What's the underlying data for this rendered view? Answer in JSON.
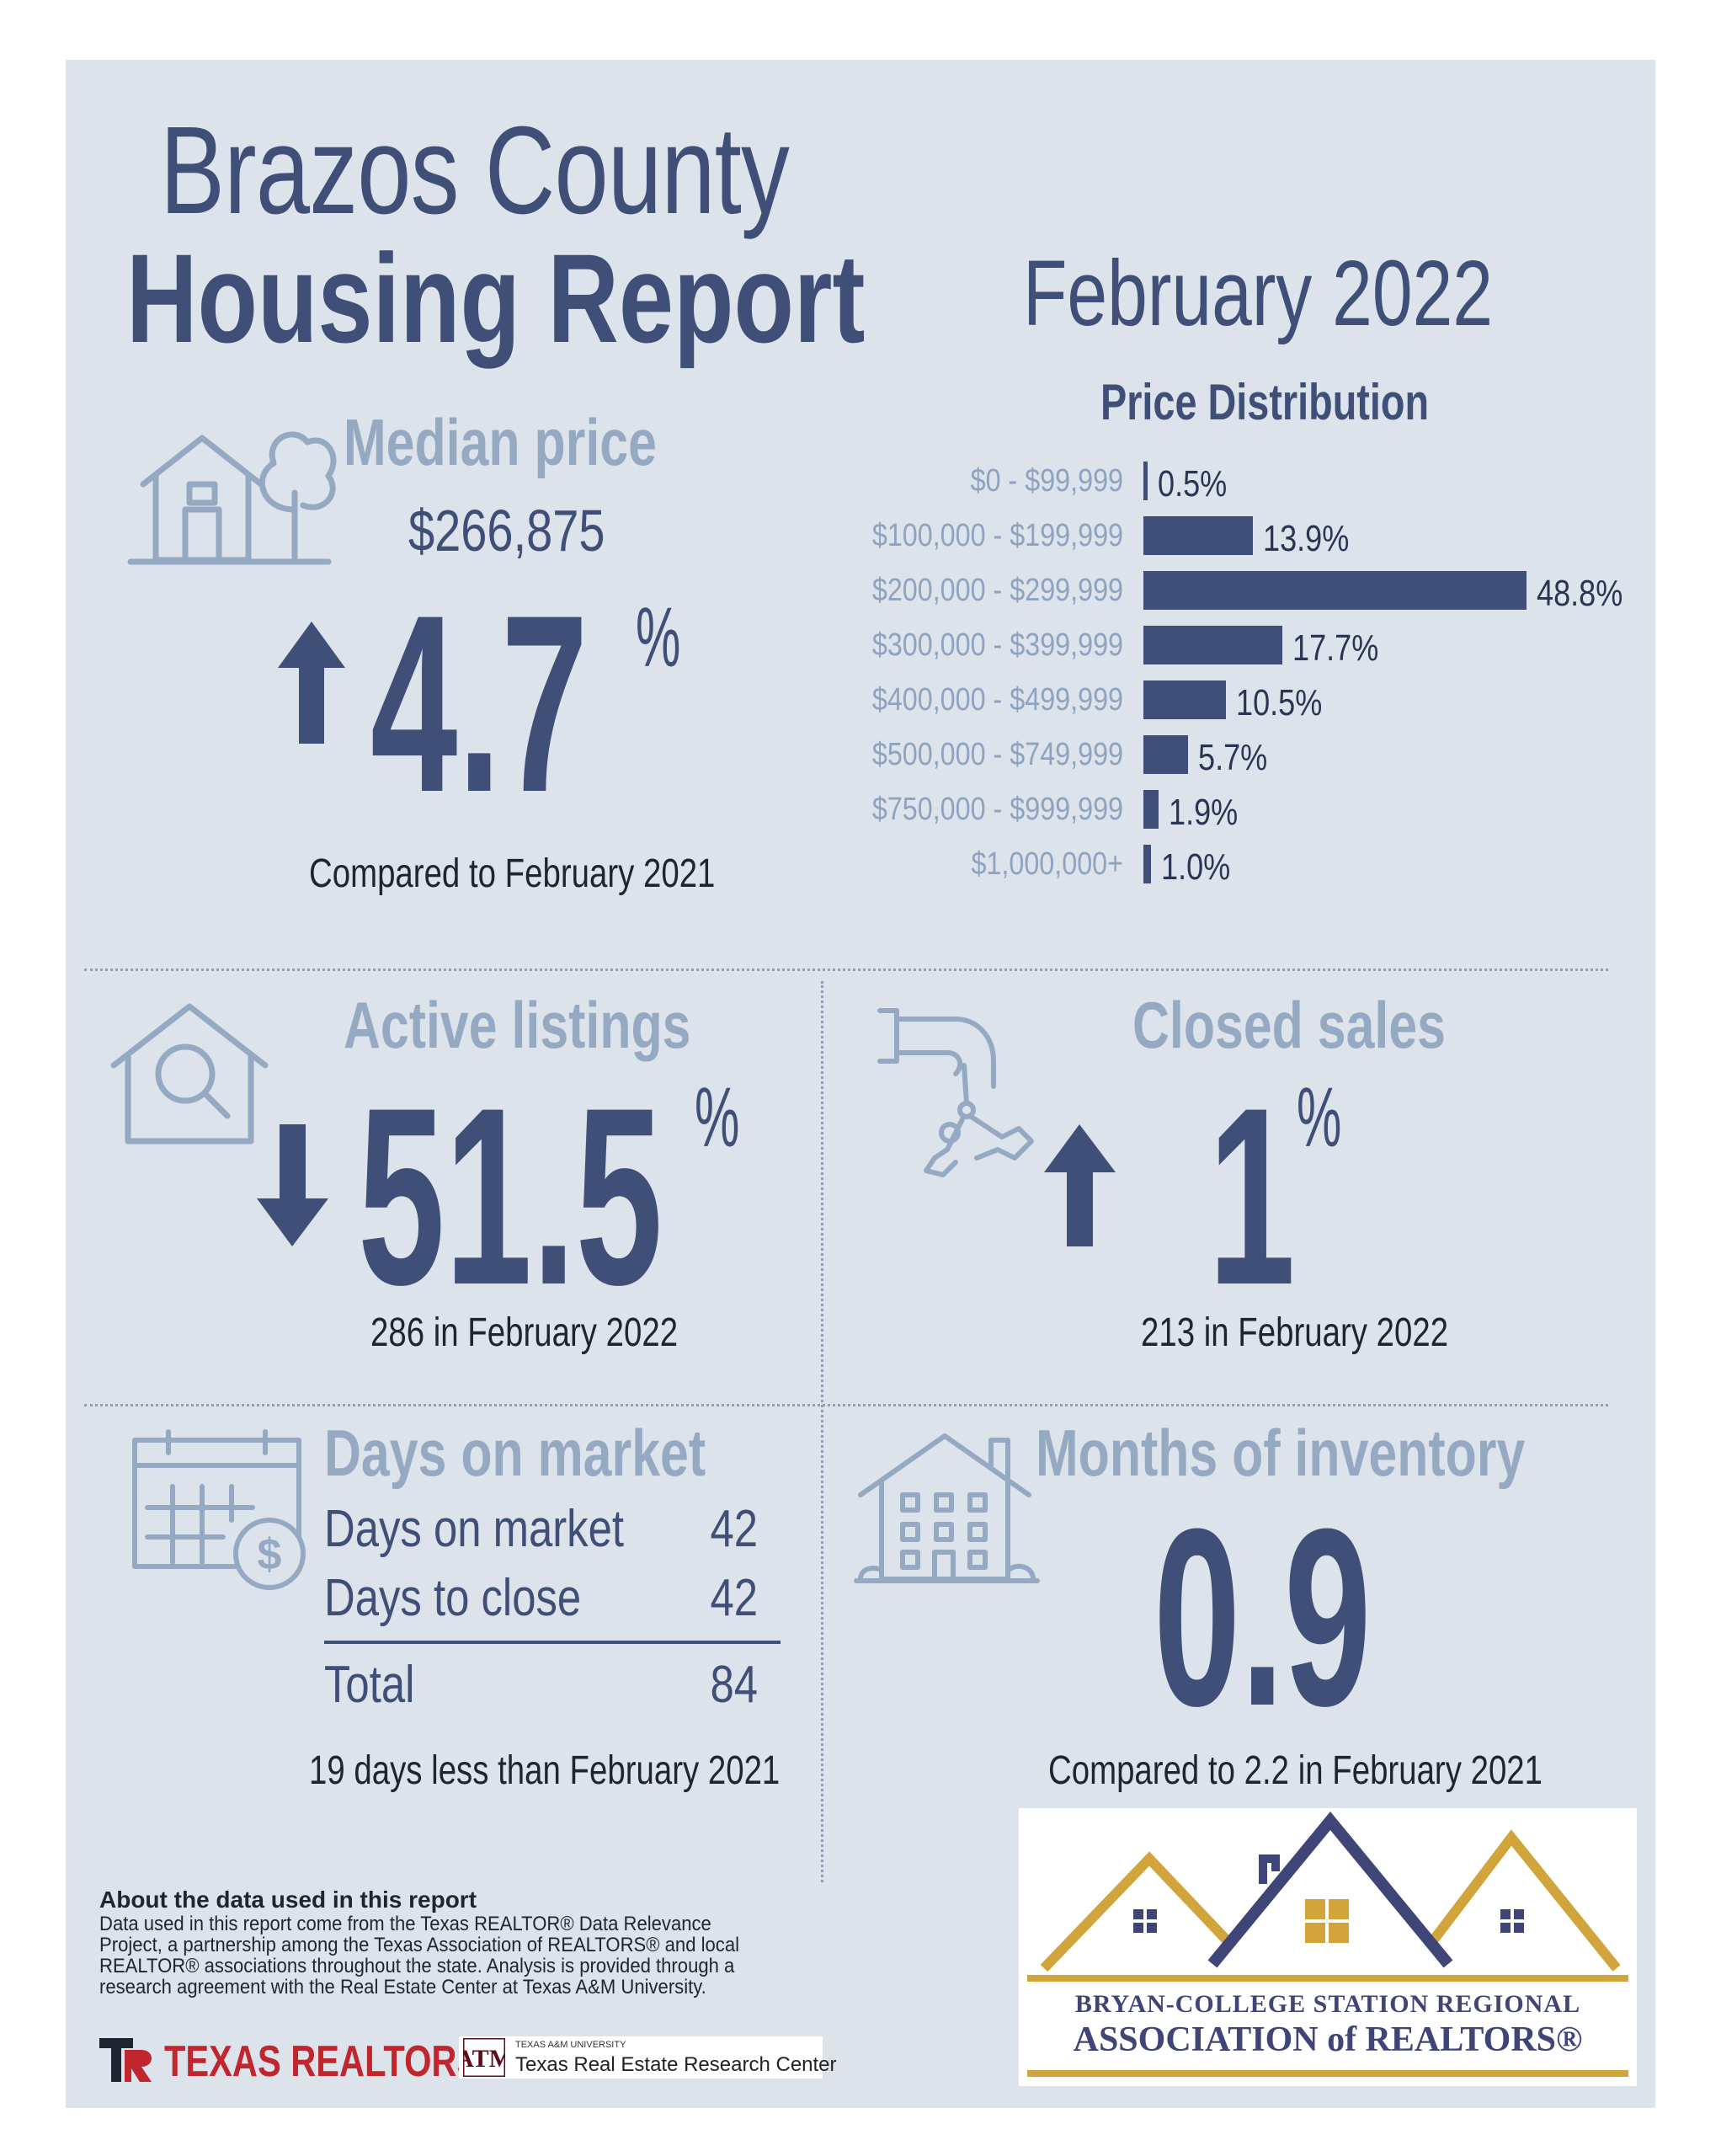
{
  "header": {
    "title_line1": "Brazos County",
    "title_line2": "Housing Report",
    "date": "February 2022"
  },
  "median_price": {
    "title": "Median price",
    "value": "$266,875",
    "change": "4.7",
    "unit": "%",
    "direction": "up",
    "caption": "Compared to February 2021"
  },
  "active_listings": {
    "title": "Active listings",
    "change": "51.5",
    "unit": "%",
    "direction": "down",
    "caption": "286 in February 2022"
  },
  "closed_sales": {
    "title": "Closed sales",
    "change": "1",
    "unit": "%",
    "direction": "up",
    "caption": "213 in February 2022"
  },
  "days_on_market": {
    "title": "Days on market",
    "rows": [
      {
        "label": "Days on market",
        "value": "42"
      },
      {
        "label": "Days to close",
        "value": "42"
      }
    ],
    "total_label": "Total",
    "total_value": "84",
    "caption": "19 days less than February 2021"
  },
  "months_inventory": {
    "title": "Months of inventory",
    "value": "0.9",
    "caption": "Compared to 2.2 in February 2021"
  },
  "chart_data": {
    "type": "bar",
    "orientation": "horizontal",
    "title": "Price Distribution",
    "categories": [
      "$0 - $99,999",
      "$100,000 - $199,999",
      "$200,000 - $299,999",
      "$300,000 - $399,999",
      "$400,000 - $499,999",
      "$500,000 - $749,999",
      "$750,000 - $999,999",
      "$1,000,000+"
    ],
    "values": [
      0.5,
      13.9,
      48.8,
      17.7,
      10.5,
      5.7,
      1.9,
      1.0
    ],
    "value_labels": [
      "0.5%",
      "13.9%",
      "48.8%",
      "17.7%",
      "10.5%",
      "5.7%",
      "1.9%",
      "1.0%"
    ],
    "xlim": [
      0,
      48.8
    ],
    "color": "#3f4f77"
  },
  "footer": {
    "about_title": "About the data used in this report",
    "about_text": "Data used in this report come from the Texas REALTOR® Data Relevance Project, a partnership among the Texas Association of REALTORS® and local REALTOR® associations throughout the state. Analysis is provided through a research agreement with the Real Estate Center at Texas A&M University.",
    "texas_realtors": "TEXAS REALTORS",
    "tamu_small": "TEXAS A&M UNIVERSITY",
    "tamu_name": "Texas Real Estate Research Center",
    "bcs_line1": "BRYAN-COLLEGE STATION REGIONAL",
    "bcs_line2": "ASSOCIATION of REALTORS®"
  },
  "colors": {
    "navy": "#3f4f77",
    "light_blue": "#95a9c2",
    "gold": "#d2a53c",
    "background": "#dde3ea"
  },
  "icons": [
    "house-tree-icon",
    "up-arrow-icon",
    "house-search-icon",
    "down-arrow-icon",
    "hand-keys-icon",
    "calendar-dollar-icon",
    "apartment-building-icon"
  ]
}
